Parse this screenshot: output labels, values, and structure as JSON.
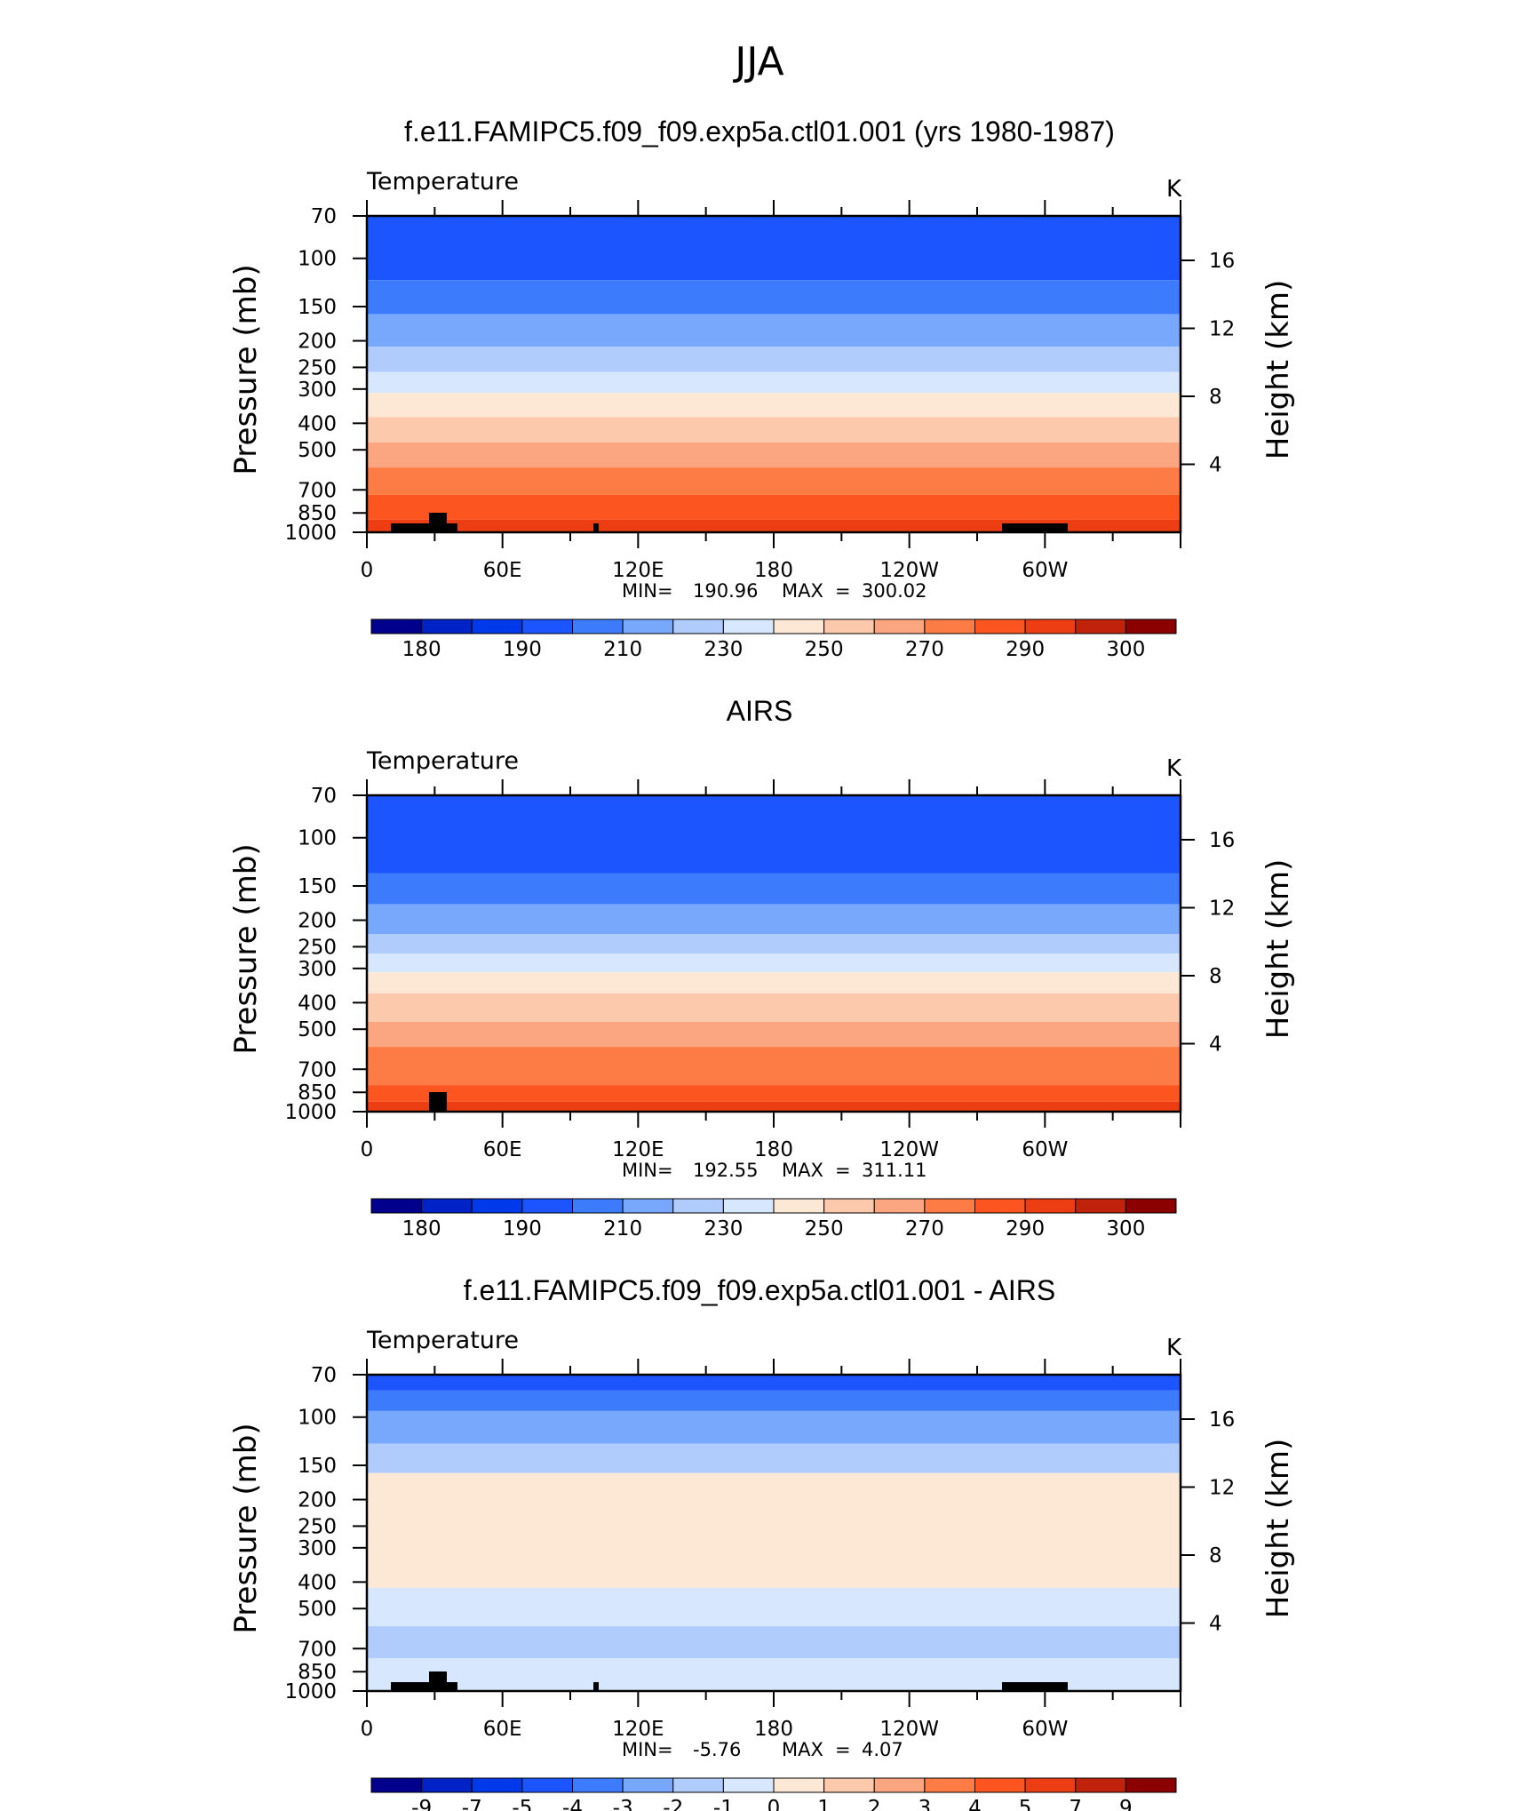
{
  "header": {
    "title": "JJA"
  },
  "chart_data": [
    {
      "type": "heatmap",
      "title": "f.e11.FAMIPC5.f09_f09.exp5a.ctl01.001 (yrs 1980-1987)",
      "variable": "Temperature",
      "units": "K",
      "ylabel": "Pressure (mb)",
      "y2label": "Height (km)",
      "xticks": [
        "0",
        "60E",
        "120E",
        "180",
        "120W",
        "60W"
      ],
      "yticks": [
        "70",
        "100",
        "150",
        "200",
        "250",
        "300",
        "400",
        "500",
        "700",
        "850",
        "1000"
      ],
      "y2ticks": [
        "16",
        "12",
        "8",
        "4"
      ],
      "stats": {
        "min_label": "MIN",
        "min": "190.96",
        "max_label": "MAX",
        "max": "300.02"
      },
      "bands": [
        {
          "top": 70,
          "bottom": 120,
          "color": "#1c55fe"
        },
        {
          "top": 120,
          "bottom": 160,
          "color": "#3d7bfd"
        },
        {
          "top": 160,
          "bottom": 210,
          "color": "#78a8fc"
        },
        {
          "top": 210,
          "bottom": 260,
          "color": "#b0ccfd"
        },
        {
          "top": 260,
          "bottom": 310,
          "color": "#d6e7fe"
        },
        {
          "top": 310,
          "bottom": 380,
          "color": "#fde8d6"
        },
        {
          "top": 380,
          "bottom": 470,
          "color": "#fdc9ad"
        },
        {
          "top": 470,
          "bottom": 580,
          "color": "#fca681"
        },
        {
          "top": 580,
          "bottom": 730,
          "color": "#fd7b45"
        },
        {
          "top": 730,
          "bottom": 900,
          "color": "#fc5520"
        },
        {
          "top": 900,
          "bottom": 1000,
          "color": "#ed3d12"
        }
      ],
      "colorbar": {
        "colors": [
          "#00008c",
          "#0022c6",
          "#0039e9",
          "#1c55fe",
          "#3d7bfd",
          "#78a8fc",
          "#b0ccfd",
          "#d6e7fe",
          "#fde8d6",
          "#fdc9ad",
          "#fca681",
          "#fd7b45",
          "#fc5520",
          "#ed3d12",
          "#c0220b",
          "#8b0000"
        ],
        "labels": [
          "180",
          "190",
          "210",
          "230",
          "250",
          "270",
          "290",
          "300"
        ]
      }
    },
    {
      "type": "heatmap",
      "title": "AIRS",
      "variable": "Temperature",
      "units": "K",
      "ylabel": "Pressure (mb)",
      "y2label": "Height (km)",
      "xticks": [
        "0",
        "60E",
        "120E",
        "180",
        "120W",
        "60W"
      ],
      "yticks": [
        "70",
        "100",
        "150",
        "200",
        "250",
        "300",
        "400",
        "500",
        "700",
        "850",
        "1000"
      ],
      "y2ticks": [
        "16",
        "12",
        "8",
        "4"
      ],
      "stats": {
        "min_label": "MIN",
        "min": "192.55",
        "max_label": "MAX",
        "max": "311.11"
      },
      "bands": [
        {
          "top": 70,
          "bottom": 135,
          "color": "#1c55fe"
        },
        {
          "top": 135,
          "bottom": 175,
          "color": "#3d7bfd"
        },
        {
          "top": 175,
          "bottom": 225,
          "color": "#78a8fc"
        },
        {
          "top": 225,
          "bottom": 265,
          "color": "#b0ccfd"
        },
        {
          "top": 265,
          "bottom": 310,
          "color": "#d6e7fe"
        },
        {
          "top": 310,
          "bottom": 370,
          "color": "#fde8d6"
        },
        {
          "top": 370,
          "bottom": 470,
          "color": "#fdc9ad"
        },
        {
          "top": 470,
          "bottom": 580,
          "color": "#fca681"
        },
        {
          "top": 580,
          "bottom": 800,
          "color": "#fd7b45"
        },
        {
          "top": 800,
          "bottom": 920,
          "color": "#fc5520"
        },
        {
          "top": 920,
          "bottom": 1000,
          "color": "#ed3d12"
        }
      ],
      "colorbar": {
        "colors": [
          "#00008c",
          "#0022c6",
          "#0039e9",
          "#1c55fe",
          "#3d7bfd",
          "#78a8fc",
          "#b0ccfd",
          "#d6e7fe",
          "#fde8d6",
          "#fdc9ad",
          "#fca681",
          "#fd7b45",
          "#fc5520",
          "#ed3d12",
          "#c0220b",
          "#8b0000"
        ],
        "labels": [
          "180",
          "190",
          "210",
          "230",
          "250",
          "270",
          "290",
          "300"
        ]
      }
    },
    {
      "type": "heatmap",
      "title": "f.e11.FAMIPC5.f09_f09.exp5a.ctl01.001 - AIRS",
      "variable": "Temperature",
      "units": "K",
      "ylabel": "Pressure (mb)",
      "y2label": "Height (km)",
      "xticks": [
        "0",
        "60E",
        "120E",
        "180",
        "120W",
        "60W"
      ],
      "yticks": [
        "70",
        "100",
        "150",
        "200",
        "250",
        "300",
        "400",
        "500",
        "700",
        "850",
        "1000"
      ],
      "y2ticks": [
        "16",
        "12",
        "8",
        "4"
      ],
      "stats": {
        "min_label": "MIN",
        "min": "-5.76",
        "max_label": "MAX",
        "max": "4.07"
      },
      "bands": [
        {
          "top": 70,
          "bottom": 80,
          "color": "#1c55fe"
        },
        {
          "top": 80,
          "bottom": 95,
          "color": "#3d7bfd"
        },
        {
          "top": 95,
          "bottom": 125,
          "color": "#78a8fc"
        },
        {
          "top": 125,
          "bottom": 160,
          "color": "#b0ccfd"
        },
        {
          "top": 160,
          "bottom": 420,
          "color": "#fde8d6"
        },
        {
          "top": 420,
          "bottom": 580,
          "color": "#d6e7fe"
        },
        {
          "top": 580,
          "bottom": 760,
          "color": "#b0ccfd"
        },
        {
          "top": 760,
          "bottom": 1000,
          "color": "#d6e7fe"
        }
      ],
      "colorbar": {
        "colors": [
          "#00008c",
          "#0022c6",
          "#0039e9",
          "#1c55fe",
          "#3d7bfd",
          "#78a8fc",
          "#b0ccfd",
          "#d6e7fe",
          "#fde8d6",
          "#fdc9ad",
          "#fca681",
          "#fd7b45",
          "#fc5520",
          "#ed3d12",
          "#c0220b",
          "#8b0000"
        ],
        "labels": [
          "-9",
          "-7",
          "-5",
          "-4",
          "-3",
          "-2",
          "-1",
          "0",
          "1",
          "2",
          "3",
          "4",
          "5",
          "7",
          "9"
        ]
      }
    }
  ]
}
